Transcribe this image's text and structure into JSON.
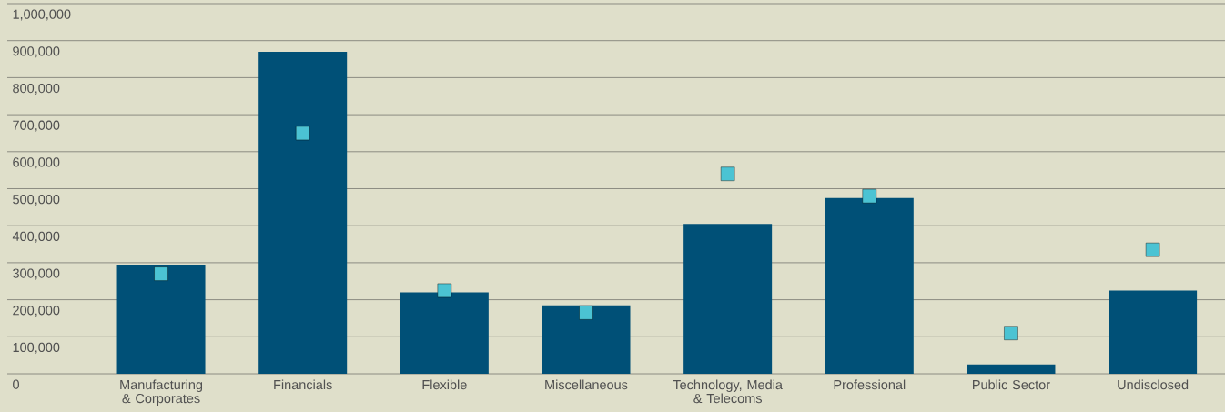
{
  "chart_data": {
    "type": "bar",
    "categories": [
      "Manufacturing & Corporates",
      "Financials",
      "Flexible",
      "Miscellaneous",
      "Technology, Media & Telecoms",
      "Professional",
      "Public Sector",
      "Undisclosed"
    ],
    "series": [
      {
        "color": "#005077",
        "values": [
          295000,
          870000,
          220000,
          185000,
          405000,
          475000,
          25000,
          225000
        ]
      },
      {
        "type": "scatter",
        "color": "#4bc3d3",
        "marker": "square",
        "values": [
          270000,
          650000,
          225000,
          165000,
          540000,
          480000,
          110000,
          335000
        ]
      }
    ],
    "ylim": [
      0,
      1000000
    ],
    "yticks": [
      {
        "value": 0,
        "label": "0"
      },
      {
        "value": 100000,
        "label": "100,000"
      },
      {
        "value": 200000,
        "label": "200,000"
      },
      {
        "value": 300000,
        "label": "300,000"
      },
      {
        "value": 400000,
        "label": "400,000"
      },
      {
        "value": 500000,
        "label": "500,000"
      },
      {
        "value": 600000,
        "label": "600,000"
      },
      {
        "value": 700000,
        "label": "700,000"
      },
      {
        "value": 800000,
        "label": "800,000"
      },
      {
        "value": 900000,
        "label": "900,000"
      },
      {
        "value": 1000000,
        "label": "1,000,000"
      }
    ],
    "grid": "y",
    "legend": false
  }
}
